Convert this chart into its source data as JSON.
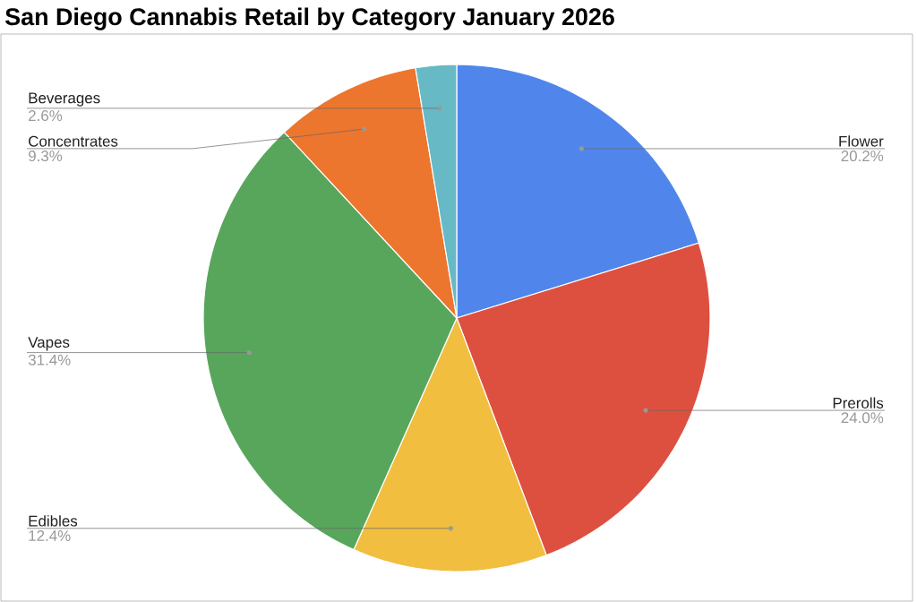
{
  "chart_data": {
    "type": "pie",
    "title": "San Diego Cannabis Retail by Category January 2026",
    "categories": [
      "Flower",
      "Prerolls",
      "Edibles",
      "Vapes",
      "Concentrates",
      "Beverages"
    ],
    "values": [
      20.2,
      24.0,
      12.4,
      31.4,
      9.3,
      2.6
    ],
    "value_labels": [
      "20.2%",
      "24.0%",
      "12.4%",
      "31.4%",
      "9.3%",
      "2.6%"
    ],
    "colors": [
      "#5086ec",
      "#dd5040",
      "#f1be40",
      "#58a65c",
      "#ec762e",
      "#67b9c6"
    ]
  }
}
